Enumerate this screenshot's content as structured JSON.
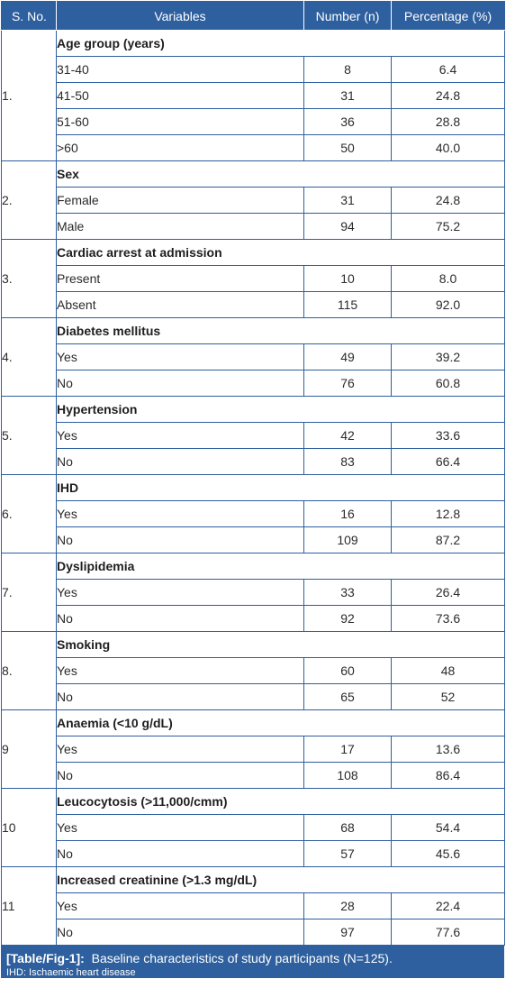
{
  "header": {
    "sno": "S. No.",
    "variables": "Variables",
    "number": "Number (n)",
    "percentage": "Percentage (%)"
  },
  "groups": [
    {
      "sno": "1.",
      "title": "Age group (years)",
      "rows": [
        {
          "label": "31-40",
          "n": "8",
          "pct": "6.4"
        },
        {
          "label": "41-50",
          "n": "31",
          "pct": "24.8"
        },
        {
          "label": "51-60",
          "n": "36",
          "pct": "28.8"
        },
        {
          "label": ">60",
          "n": "50",
          "pct": "40.0"
        }
      ]
    },
    {
      "sno": "2.",
      "title": "Sex",
      "rows": [
        {
          "label": "Female",
          "n": "31",
          "pct": "24.8"
        },
        {
          "label": "Male",
          "n": "94",
          "pct": "75.2"
        }
      ]
    },
    {
      "sno": "3.",
      "title": "Cardiac arrest at admission",
      "rows": [
        {
          "label": "Present",
          "n": "10",
          "pct": "8.0"
        },
        {
          "label": "Absent",
          "n": "115",
          "pct": "92.0"
        }
      ]
    },
    {
      "sno": "4.",
      "title": "Diabetes mellitus",
      "rows": [
        {
          "label": "Yes",
          "n": "49",
          "pct": "39.2"
        },
        {
          "label": "No",
          "n": "76",
          "pct": "60.8"
        }
      ]
    },
    {
      "sno": "5.",
      "title": "Hypertension",
      "rows": [
        {
          "label": "Yes",
          "n": "42",
          "pct": "33.6"
        },
        {
          "label": "No",
          "n": "83",
          "pct": "66.4"
        }
      ]
    },
    {
      "sno": "6.",
      "title": "IHD",
      "rows": [
        {
          "label": "Yes",
          "n": "16",
          "pct": "12.8"
        },
        {
          "label": "No",
          "n": "109",
          "pct": "87.2"
        }
      ]
    },
    {
      "sno": "7.",
      "title": "Dyslipidemia",
      "rows": [
        {
          "label": "Yes",
          "n": "33",
          "pct": "26.4"
        },
        {
          "label": "No",
          "n": "92",
          "pct": "73.6"
        }
      ]
    },
    {
      "sno": "8.",
      "title": "Smoking",
      "rows": [
        {
          "label": "Yes",
          "n": "60",
          "pct": "48"
        },
        {
          "label": "No",
          "n": "65",
          "pct": "52"
        }
      ]
    },
    {
      "sno": "9",
      "title": "Anaemia (<10 g/dL)",
      "rows": [
        {
          "label": "Yes",
          "n": "17",
          "pct": "13.6"
        },
        {
          "label": "No",
          "n": "108",
          "pct": "86.4"
        }
      ]
    },
    {
      "sno": "10",
      "title": "Leucocytosis (>11,000/cmm)",
      "rows": [
        {
          "label": "Yes",
          "n": "68",
          "pct": "54.4"
        },
        {
          "label": "No",
          "n": "57",
          "pct": "45.6"
        }
      ]
    },
    {
      "sno": "11",
      "title": "Increased creatinine (>1.3 mg/dL)",
      "rows": [
        {
          "label": "Yes",
          "n": "28",
          "pct": "22.4"
        },
        {
          "label": "No",
          "n": "97",
          "pct": "77.6"
        }
      ]
    }
  ],
  "caption": {
    "tag": "[Table/Fig-1]:",
    "text": "Baseline characteristics of study participants (N=125).",
    "note": "IHD: Ischaemic heart disease"
  },
  "colors": {
    "accent": "#2e5f9e",
    "text": "#2b2b2b"
  }
}
